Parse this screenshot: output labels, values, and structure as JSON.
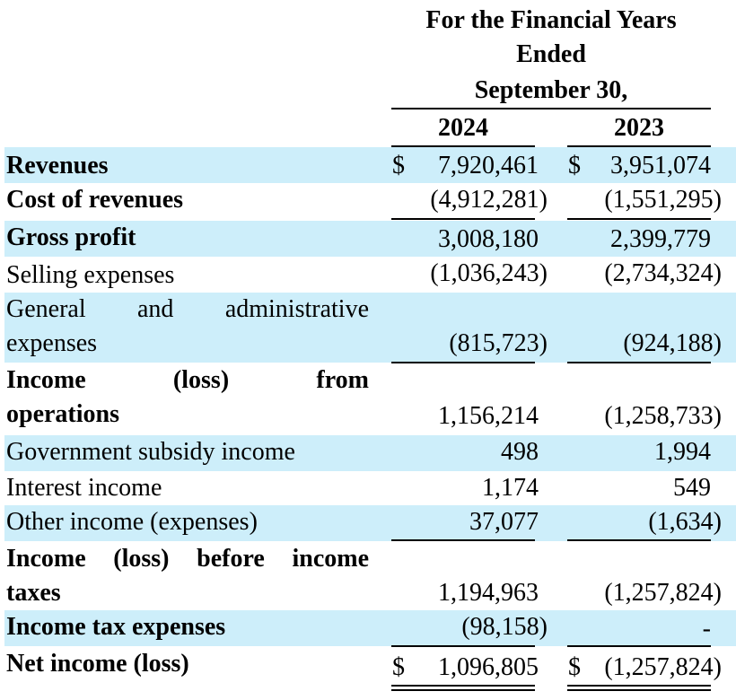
{
  "header": {
    "line1": "For the Financial Years",
    "line2": "Ended",
    "line3": "September 30,",
    "year1": "2024",
    "year2": "2023"
  },
  "rows": [
    {
      "label": "Revenues",
      "v2024": "7,920,461",
      "v2023": "3,951,074",
      "dollar": "$"
    },
    {
      "label": "Cost of revenues",
      "v2024": "(4,912,281)",
      "v2023": "(1,551,295)"
    },
    {
      "label": "Gross profit",
      "v2024": "3,008,180",
      "v2023": "2,399,779"
    },
    {
      "label": "Selling expenses",
      "v2024": "(1,036,243)",
      "v2023": "(2,734,324)"
    },
    {
      "label_line1": "General and administrative",
      "label_line2": "expenses",
      "v2024": "(815,723)",
      "v2023": "(924,188)"
    },
    {
      "label_line1": "Income (loss) from",
      "label_line2": "operations",
      "v2024": "1,156,214",
      "v2023": "(1,258,733)"
    },
    {
      "label": "Government subsidy income",
      "v2024": "498",
      "v2023": "1,994"
    },
    {
      "label": "Interest income",
      "v2024": "1,174",
      "v2023": "549"
    },
    {
      "label": "Other income (expenses)",
      "v2024": "37,077",
      "v2023": "(1,634)"
    },
    {
      "label_line1": "Income (loss) before income",
      "label_line2": "taxes",
      "v2024": "1,194,963",
      "v2023": "(1,257,824)"
    },
    {
      "label": "Income tax expenses",
      "v2024": "(98,158)",
      "v2023": "-"
    },
    {
      "label": "Net income (loss)",
      "v2024": "1,096,805",
      "v2023": "(1,257,824)",
      "dollar": "$"
    }
  ]
}
